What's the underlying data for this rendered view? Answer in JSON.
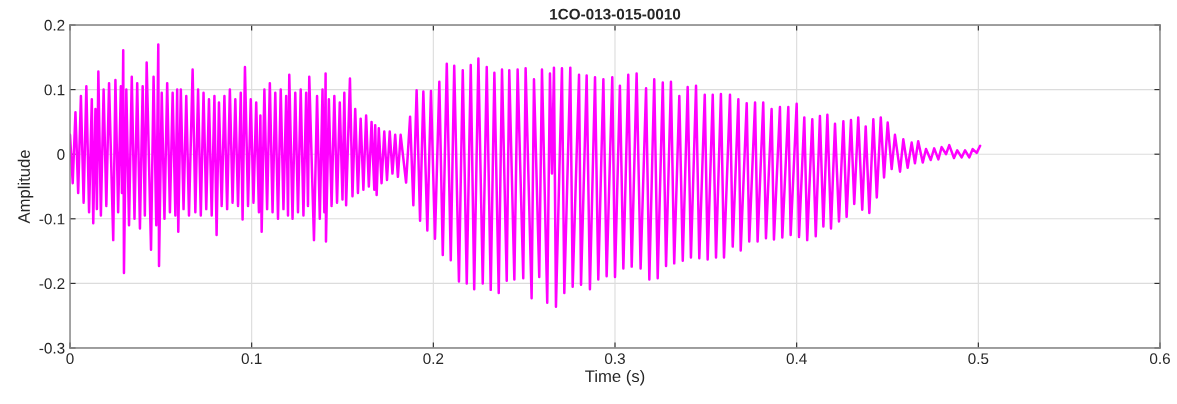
{
  "chart_data": {
    "type": "line",
    "title": "1CO-013-015-0010",
    "xlabel": "Time (s)",
    "ylabel": "Amplitude",
    "xlim": [
      0,
      0.6
    ],
    "xticks": [
      0,
      0.1,
      0.2,
      0.3,
      0.4,
      0.5,
      0.6
    ],
    "ylim": [
      -0.3,
      0.2
    ],
    "yticks": [
      -0.3,
      -0.2,
      -0.1,
      0,
      0.1,
      0.2
    ],
    "grid": true,
    "x": [
      0.0,
      0.0015,
      0.003,
      0.0045,
      0.006,
      0.0075,
      0.009,
      0.0105,
      0.012,
      0.0128,
      0.014,
      0.0148,
      0.0156,
      0.017,
      0.0185,
      0.02,
      0.0215,
      0.0238,
      0.025,
      0.0265,
      0.028,
      0.0286,
      0.0293,
      0.0297,
      0.031,
      0.0325,
      0.034,
      0.0355,
      0.037,
      0.0385,
      0.04,
      0.0412,
      0.0422,
      0.0446,
      0.046,
      0.0475,
      0.0486,
      0.049,
      0.0505,
      0.052,
      0.0535,
      0.055,
      0.0565,
      0.058,
      0.059,
      0.0596,
      0.061,
      0.0625,
      0.064,
      0.0655,
      0.0675,
      0.069,
      0.0705,
      0.072,
      0.0735,
      0.075,
      0.0765,
      0.078,
      0.0795,
      0.0807,
      0.082,
      0.0835,
      0.085,
      0.0865,
      0.088,
      0.0895,
      0.091,
      0.0925,
      0.094,
      0.095,
      0.0963,
      0.098,
      0.0995,
      0.101,
      0.1025,
      0.104,
      0.1048,
      0.1055,
      0.107,
      0.1085,
      0.11,
      0.1115,
      0.113,
      0.1145,
      0.116,
      0.1175,
      0.119,
      0.12,
      0.1207,
      0.1225,
      0.124,
      0.1255,
      0.127,
      0.1285,
      0.13,
      0.131,
      0.1317,
      0.1343,
      0.136,
      0.1375,
      0.139,
      0.14,
      0.1407,
      0.1409,
      0.1425,
      0.144,
      0.1455,
      0.147,
      0.1485,
      0.15,
      0.151,
      0.152,
      0.1541,
      0.1555,
      0.157,
      0.1585,
      0.16,
      0.1615,
      0.163,
      0.1645,
      0.166,
      0.1675,
      0.168,
      0.1688,
      0.17,
      0.1715,
      0.173,
      0.1745,
      0.176,
      0.1775,
      0.179,
      0.1805,
      0.182,
      0.185,
      0.1872,
      0.189,
      0.1908,
      0.1927,
      0.1945,
      0.1967,
      0.1987,
      0.2009,
      0.2033,
      0.2052,
      0.2074,
      0.2096,
      0.2115,
      0.2141,
      0.2162,
      0.2184,
      0.2206,
      0.2225,
      0.2248,
      0.2272,
      0.2294,
      0.2316,
      0.2336,
      0.236,
      0.2378,
      0.2404,
      0.2418,
      0.2446,
      0.2464,
      0.2495,
      0.2508,
      0.2541,
      0.2554,
      0.2583,
      0.2598,
      0.2627,
      0.2642,
      0.2653,
      0.2664,
      0.2675,
      0.2708,
      0.2721,
      0.2754,
      0.2767,
      0.2802,
      0.2813,
      0.2844,
      0.2862,
      0.289,
      0.2908,
      0.2936,
      0.2954,
      0.2985,
      0.3,
      0.3027,
      0.3046,
      0.3073,
      0.3092,
      0.3119,
      0.3141,
      0.3171,
      0.3189,
      0.3216,
      0.3235,
      0.3263,
      0.3281,
      0.3308,
      0.3326,
      0.3354,
      0.3373,
      0.34,
      0.3418,
      0.3446,
      0.3464,
      0.3494,
      0.351,
      0.3538,
      0.3556,
      0.3583,
      0.36,
      0.3633,
      0.3648,
      0.3679,
      0.3692,
      0.3725,
      0.3739,
      0.3771,
      0.3785,
      0.3816,
      0.3831,
      0.3862,
      0.3875,
      0.3908,
      0.3921,
      0.3954,
      0.3967,
      0.4,
      0.4013,
      0.4042,
      0.4058,
      0.4086,
      0.4105,
      0.4128,
      0.4147,
      0.4169,
      0.4189,
      0.4211,
      0.4233,
      0.4257,
      0.4275,
      0.4299,
      0.4317,
      0.4339,
      0.4361,
      0.438,
      0.44,
      0.4422,
      0.4441,
      0.4463,
      0.4481,
      0.4501,
      0.4523,
      0.4541,
      0.4569,
      0.4587,
      0.4611,
      0.4633,
      0.4651,
      0.4669,
      0.4694,
      0.4712,
      0.4738,
      0.4757,
      0.478,
      0.4798,
      0.4822,
      0.484,
      0.4866,
      0.4884,
      0.4908,
      0.4927,
      0.495,
      0.4969,
      0.4991,
      0.501
    ],
    "series": [
      {
        "color": "#ff00ff",
        "values": [
          0.03,
          -0.045,
          0.065,
          -0.06,
          0.09,
          -0.075,
          0.105,
          -0.09,
          0.085,
          -0.107,
          0.07,
          -0.085,
          0.128,
          -0.095,
          0.1,
          -0.08,
          0.11,
          -0.133,
          0.115,
          -0.09,
          0.105,
          -0.06,
          0.161,
          -0.184,
          0.1,
          -0.11,
          0.12,
          -0.1,
          0.11,
          -0.115,
          0.105,
          -0.095,
          0.142,
          -0.148,
          0.12,
          -0.11,
          0.17,
          -0.173,
          0.095,
          -0.1,
          0.11,
          -0.09,
          0.095,
          -0.095,
          0.1,
          -0.12,
          0.1,
          -0.085,
          0.09,
          -0.095,
          0.131,
          -0.09,
          0.1,
          -0.095,
          0.095,
          -0.085,
          0.085,
          -0.095,
          0.09,
          -0.125,
          0.08,
          -0.08,
          0.09,
          -0.085,
          0.1,
          -0.075,
          0.085,
          -0.08,
          0.095,
          -0.101,
          0.135,
          -0.08,
          0.085,
          -0.075,
          0.08,
          -0.09,
          0.06,
          -0.12,
          0.1,
          -0.085,
          0.11,
          -0.09,
          0.095,
          -0.1,
          0.1,
          -0.085,
          0.09,
          -0.095,
          0.123,
          -0.1,
          0.095,
          -0.09,
          0.1,
          -0.095,
          0.095,
          -0.08,
          0.12,
          -0.133,
          0.09,
          -0.1,
          0.1,
          -0.09,
          0.125,
          -0.135,
          0.085,
          -0.08,
          0.09,
          -0.075,
          0.08,
          -0.07,
          0.095,
          -0.079,
          0.117,
          -0.065,
          0.07,
          -0.06,
          0.055,
          -0.055,
          0.06,
          -0.05,
          0.05,
          -0.055,
          0.045,
          -0.063,
          0.04,
          -0.045,
          0.035,
          -0.04,
          0.035,
          -0.03,
          0.03,
          -0.035,
          0.03,
          -0.044,
          0.058,
          -0.079,
          0.099,
          -0.103,
          0.097,
          -0.118,
          0.098,
          -0.131,
          0.112,
          -0.156,
          0.14,
          -0.164,
          0.137,
          -0.197,
          0.13,
          -0.2,
          0.138,
          -0.209,
          0.148,
          -0.2,
          0.135,
          -0.21,
          0.126,
          -0.215,
          0.131,
          -0.196,
          0.13,
          -0.194,
          0.131,
          -0.192,
          0.133,
          -0.223,
          0.116,
          -0.19,
          0.131,
          -0.23,
          0.125,
          -0.03,
          0.134,
          -0.236,
          0.133,
          -0.215,
          0.134,
          -0.205,
          0.123,
          -0.202,
          0.122,
          -0.209,
          0.119,
          -0.194,
          0.116,
          -0.189,
          0.119,
          -0.19,
          0.106,
          -0.177,
          0.123,
          -0.174,
          0.125,
          -0.177,
          0.102,
          -0.194,
          0.116,
          -0.192,
          0.111,
          -0.173,
          0.112,
          -0.169,
          0.09,
          -0.165,
          0.104,
          -0.16,
          0.106,
          -0.161,
          0.092,
          -0.163,
          0.092,
          -0.16,
          0.093,
          -0.16,
          0.092,
          -0.143,
          0.085,
          -0.149,
          0.079,
          -0.135,
          0.08,
          -0.135,
          0.08,
          -0.13,
          0.07,
          -0.132,
          0.073,
          -0.129,
          0.073,
          -0.125,
          0.078,
          -0.128,
          0.057,
          -0.133,
          0.054,
          -0.127,
          0.059,
          -0.112,
          0.061,
          -0.115,
          0.047,
          -0.104,
          0.051,
          -0.097,
          0.053,
          -0.077,
          0.057,
          -0.086,
          0.043,
          -0.091,
          0.054,
          -0.067,
          0.057,
          -0.036,
          0.049,
          -0.023,
          0.03,
          -0.027,
          0.023,
          -0.021,
          0.018,
          -0.014,
          0.02,
          -0.013,
          0.008,
          -0.009,
          0.009,
          -0.008,
          0.011,
          0.0,
          0.014,
          -0.006,
          0.006,
          -0.005,
          0.006,
          -0.005,
          0.008,
          0.002,
          0.013
        ]
      }
    ]
  }
}
